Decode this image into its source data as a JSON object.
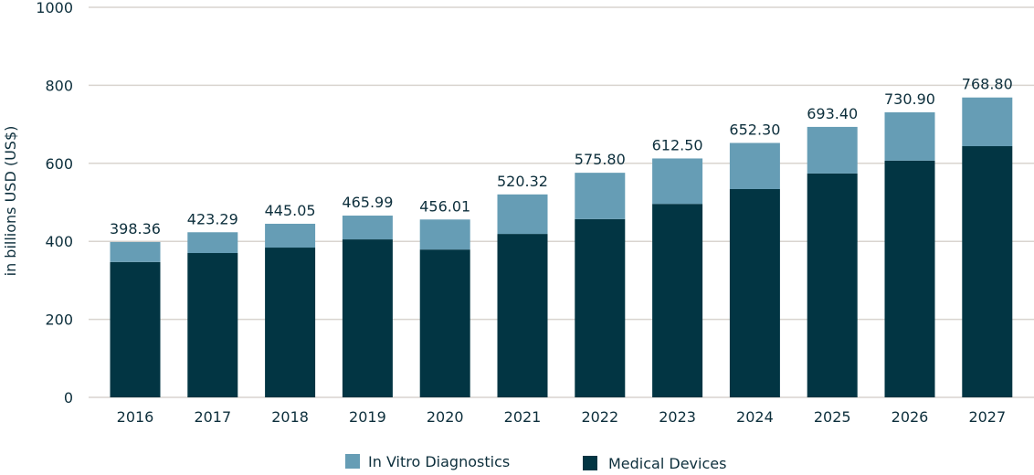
{
  "chart_data": {
    "type": "bar",
    "stacked": true,
    "title": "",
    "xlabel": "",
    "ylabel": "in billions USD (US$)",
    "ylim": [
      0,
      1000
    ],
    "yticks": [
      0,
      200,
      400,
      600,
      800,
      1000
    ],
    "grid": true,
    "legend_position": "bottom",
    "categories": [
      "2016",
      "2017",
      "2018",
      "2019",
      "2020",
      "2021",
      "2022",
      "2023",
      "2024",
      "2025",
      "2026",
      "2027"
    ],
    "totals": [
      "398.36",
      "423.29",
      "445.05",
      "465.99",
      "456.01",
      "520.32",
      "575.80",
      "612.50",
      "652.30",
      "693.40",
      "730.90",
      "768.80"
    ],
    "series": [
      {
        "name": "Medical Devices",
        "color": "#023543",
        "values": [
          347,
          370,
          384,
          405,
          379,
          419,
          457,
          496,
          534,
          574,
          607,
          644
        ]
      },
      {
        "name": "In Vitro Diagnostics",
        "color": "#669db5",
        "values": [
          51.36,
          53.29,
          61.05,
          60.99,
          77.01,
          101.32,
          118.8,
          116.5,
          118.3,
          119.4,
          123.9,
          124.8
        ]
      }
    ]
  }
}
